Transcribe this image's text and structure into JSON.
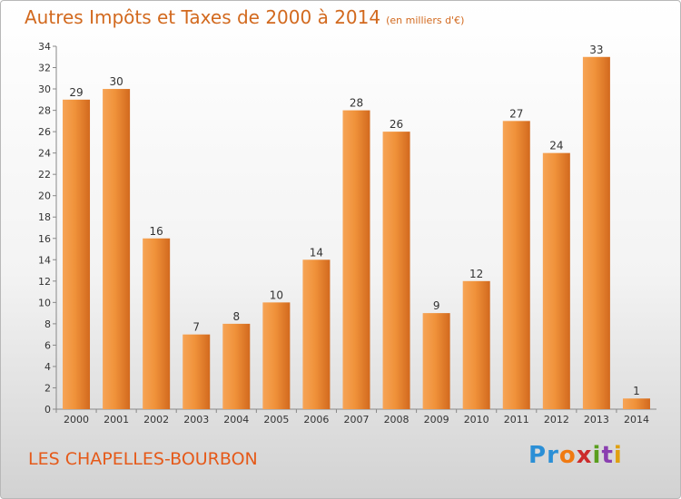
{
  "title": "Autres Impôts et Taxes de 2000 à 2014",
  "unit": "(en milliers d'€)",
  "place": "LES CHAPELLES-BOURBON",
  "logo": "Proxiti",
  "colors": {
    "bar": "#f0923a",
    "bar_dark": "#d2691e",
    "title": "#d2691e",
    "place": "#e55a1a"
  },
  "chart_data": {
    "type": "bar",
    "title": "Autres Impôts et Taxes de 2000 à 2014",
    "xlabel": "",
    "ylabel": "",
    "categories": [
      "2000",
      "2001",
      "2002",
      "2003",
      "2004",
      "2005",
      "2006",
      "2007",
      "2008",
      "2009",
      "2010",
      "2011",
      "2012",
      "2013",
      "2014"
    ],
    "values": [
      29,
      30,
      16,
      7,
      8,
      10,
      14,
      28,
      26,
      9,
      12,
      27,
      24,
      33,
      1
    ],
    "ylim": [
      0,
      34
    ],
    "yticks": [
      0,
      2,
      4,
      6,
      8,
      10,
      12,
      14,
      16,
      18,
      20,
      22,
      24,
      26,
      28,
      30,
      32,
      34
    ],
    "grid": false,
    "legend": "none"
  }
}
